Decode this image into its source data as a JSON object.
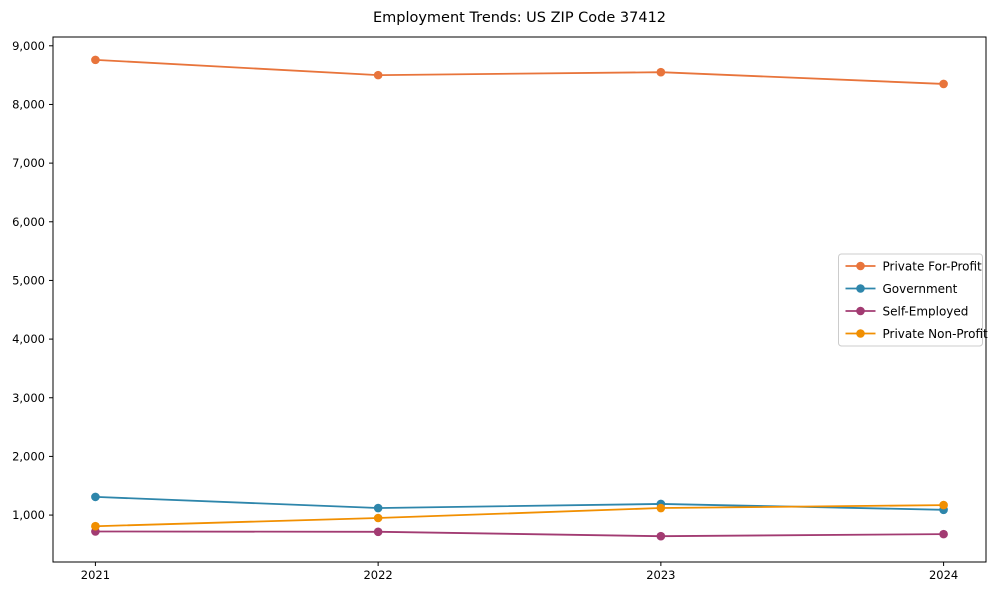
{
  "page": {
    "title": "Employment Trends: US ZIP Code 37412"
  },
  "chart_data": {
    "type": "line",
    "title": "Employment Trends: US ZIP Code 37412",
    "xlabel": "",
    "ylabel": "",
    "x": [
      2021,
      2022,
      2023,
      2024
    ],
    "x_tick_labels": [
      "2021",
      "2022",
      "2023",
      "2024"
    ],
    "yticks": [
      1000,
      2000,
      3000,
      4000,
      5000,
      6000,
      7000,
      8000,
      9000
    ],
    "ytick_labels": [
      "1,000",
      "2,000",
      "3,000",
      "4,000",
      "5,000",
      "6,000",
      "7,000",
      "8,000",
      "9,000"
    ],
    "xlim": [
      2020.85,
      2024.15
    ],
    "ylim": [
      200,
      9150
    ],
    "grid": false,
    "legend_position": "right-center",
    "series": [
      {
        "name": "Private For-Profit",
        "color": "#E8743B",
        "values": [
          8760,
          8500,
          8550,
          8350
        ]
      },
      {
        "name": "Government",
        "color": "#2E86AB",
        "values": [
          1310,
          1120,
          1190,
          1090
        ]
      },
      {
        "name": "Self-Employed",
        "color": "#A23B72",
        "values": [
          720,
          715,
          640,
          675
        ]
      },
      {
        "name": "Private Non-Profit",
        "color": "#F18F01",
        "values": [
          810,
          950,
          1120,
          1170
        ]
      }
    ]
  }
}
